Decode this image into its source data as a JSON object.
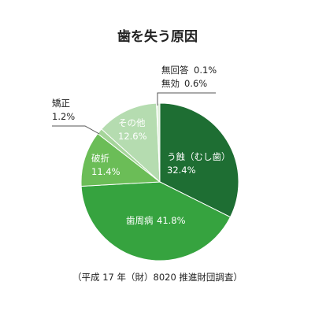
{
  "chart_data": {
    "type": "pie",
    "title": "歯を失う原因",
    "source": "（平成 17 年（財）8020 推進財団調査）",
    "start_angle_deg": 0,
    "direction": "clockwise",
    "slices": [
      {
        "id": "caries",
        "label": "う蝕（むし歯）",
        "value": 32.4,
        "value_text": "32.4%",
        "color": "#1e6e33"
      },
      {
        "id": "periodontal",
        "label": "歯周病",
        "value": 41.8,
        "value_text": "41.8%",
        "color": "#36a33f"
      },
      {
        "id": "fracture",
        "label": "破折",
        "value": 11.4,
        "value_text": "11.4%",
        "color": "#6bbd57"
      },
      {
        "id": "orthodontic",
        "label": "矯正",
        "value": 1.2,
        "value_text": "1.2%",
        "color": "#a5d59a"
      },
      {
        "id": "other",
        "label": "その他",
        "value": 12.6,
        "value_text": "12.6%",
        "color": "#b5dcb0"
      },
      {
        "id": "no-answer",
        "label": "無回答",
        "value": 0.1,
        "value_text": "0.1%",
        "color": "#8fcf8c"
      },
      {
        "id": "invalid",
        "label": "無効",
        "value": 0.6,
        "value_text": "0.6%",
        "color": "#dff0da"
      }
    ]
  }
}
